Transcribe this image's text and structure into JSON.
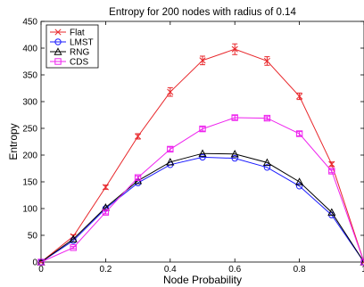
{
  "chart_data": {
    "type": "line",
    "title": "Entropy for 200 nodes with radius of 0.14",
    "xlabel": "Node Probability",
    "ylabel": "Entropy",
    "xlim": [
      0,
      1
    ],
    "ylim": [
      0,
      450
    ],
    "x_ticks": [
      0,
      0.2,
      0.4,
      0.6,
      0.8,
      1
    ],
    "x_tick_labels": [
      "0",
      "0.2",
      "0.4",
      "0.6",
      "0.8",
      "1"
    ],
    "y_ticks": [
      0,
      50,
      100,
      150,
      200,
      250,
      300,
      350,
      400,
      450
    ],
    "y_tick_labels": [
      "0",
      "50",
      "100",
      "150",
      "200",
      "250",
      "300",
      "350",
      "400",
      "450"
    ],
    "grid": false,
    "legend_position": "top-left",
    "x": [
      0,
      0.1,
      0.2,
      0.3,
      0.4,
      0.5,
      0.6,
      0.7,
      0.8,
      0.9,
      1.0
    ],
    "series": [
      {
        "name": "Flat",
        "color": "#e8262a",
        "marker": "x",
        "values": [
          0,
          48,
          140,
          235,
          318,
          377,
          398,
          376,
          310,
          183,
          0
        ],
        "errors": [
          0,
          3,
          4,
          5,
          8,
          8,
          10,
          8,
          6,
          4,
          0
        ]
      },
      {
        "name": "LMST",
        "color": "#1a1aff",
        "marker": "circle",
        "values": [
          0,
          40,
          100,
          148,
          182,
          196,
          194,
          177,
          142,
          88,
          0
        ]
      },
      {
        "name": "RNG",
        "color": "#000000",
        "marker": "triangle",
        "values": [
          0,
          43,
          102,
          152,
          187,
          203,
          202,
          186,
          150,
          93,
          0
        ]
      },
      {
        "name": "CDS",
        "color": "#ee22ee",
        "marker": "square",
        "values": [
          0,
          27,
          93,
          158,
          211,
          249,
          270,
          269,
          240,
          170,
          0
        ],
        "errors": [
          0,
          2,
          3,
          3,
          4,
          4,
          4,
          3,
          4,
          3,
          0
        ]
      }
    ]
  }
}
